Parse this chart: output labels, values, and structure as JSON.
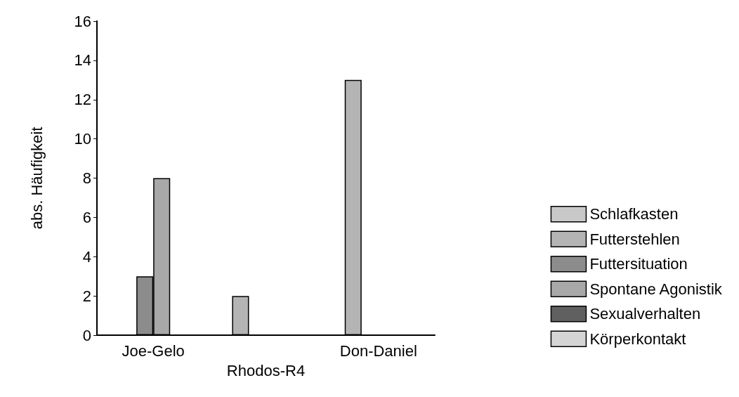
{
  "chart_data": {
    "type": "bar",
    "ylabel": "abs. Häufigkeit",
    "categories": [
      "Joe-Gelo",
      "Rhodos-R4",
      "Don-Daniel"
    ],
    "series": [
      {
        "name": "Schlafkasten",
        "color": "#c8c8c8",
        "values": [
          0,
          0,
          0
        ]
      },
      {
        "name": "Futterstehlen",
        "color": "#b4b4b4",
        "values": [
          0,
          2,
          13
        ]
      },
      {
        "name": "Futtersituation",
        "color": "#8c8c8c",
        "values": [
          3,
          0,
          0
        ]
      },
      {
        "name": "Spontane Agonistik",
        "color": "#a8a8a8",
        "values": [
          8,
          0,
          0
        ]
      },
      {
        "name": "Sexualverhalten",
        "color": "#606060",
        "values": [
          0,
          0,
          0
        ]
      },
      {
        "name": "Körperkontakt",
        "color": "#d4d4d4",
        "values": [
          0,
          0,
          0
        ]
      }
    ],
    "ylim": [
      0,
      16
    ],
    "yticks": [
      0,
      2,
      4,
      6,
      8,
      10,
      12,
      14,
      16
    ],
    "grid": false,
    "legend": "right"
  }
}
